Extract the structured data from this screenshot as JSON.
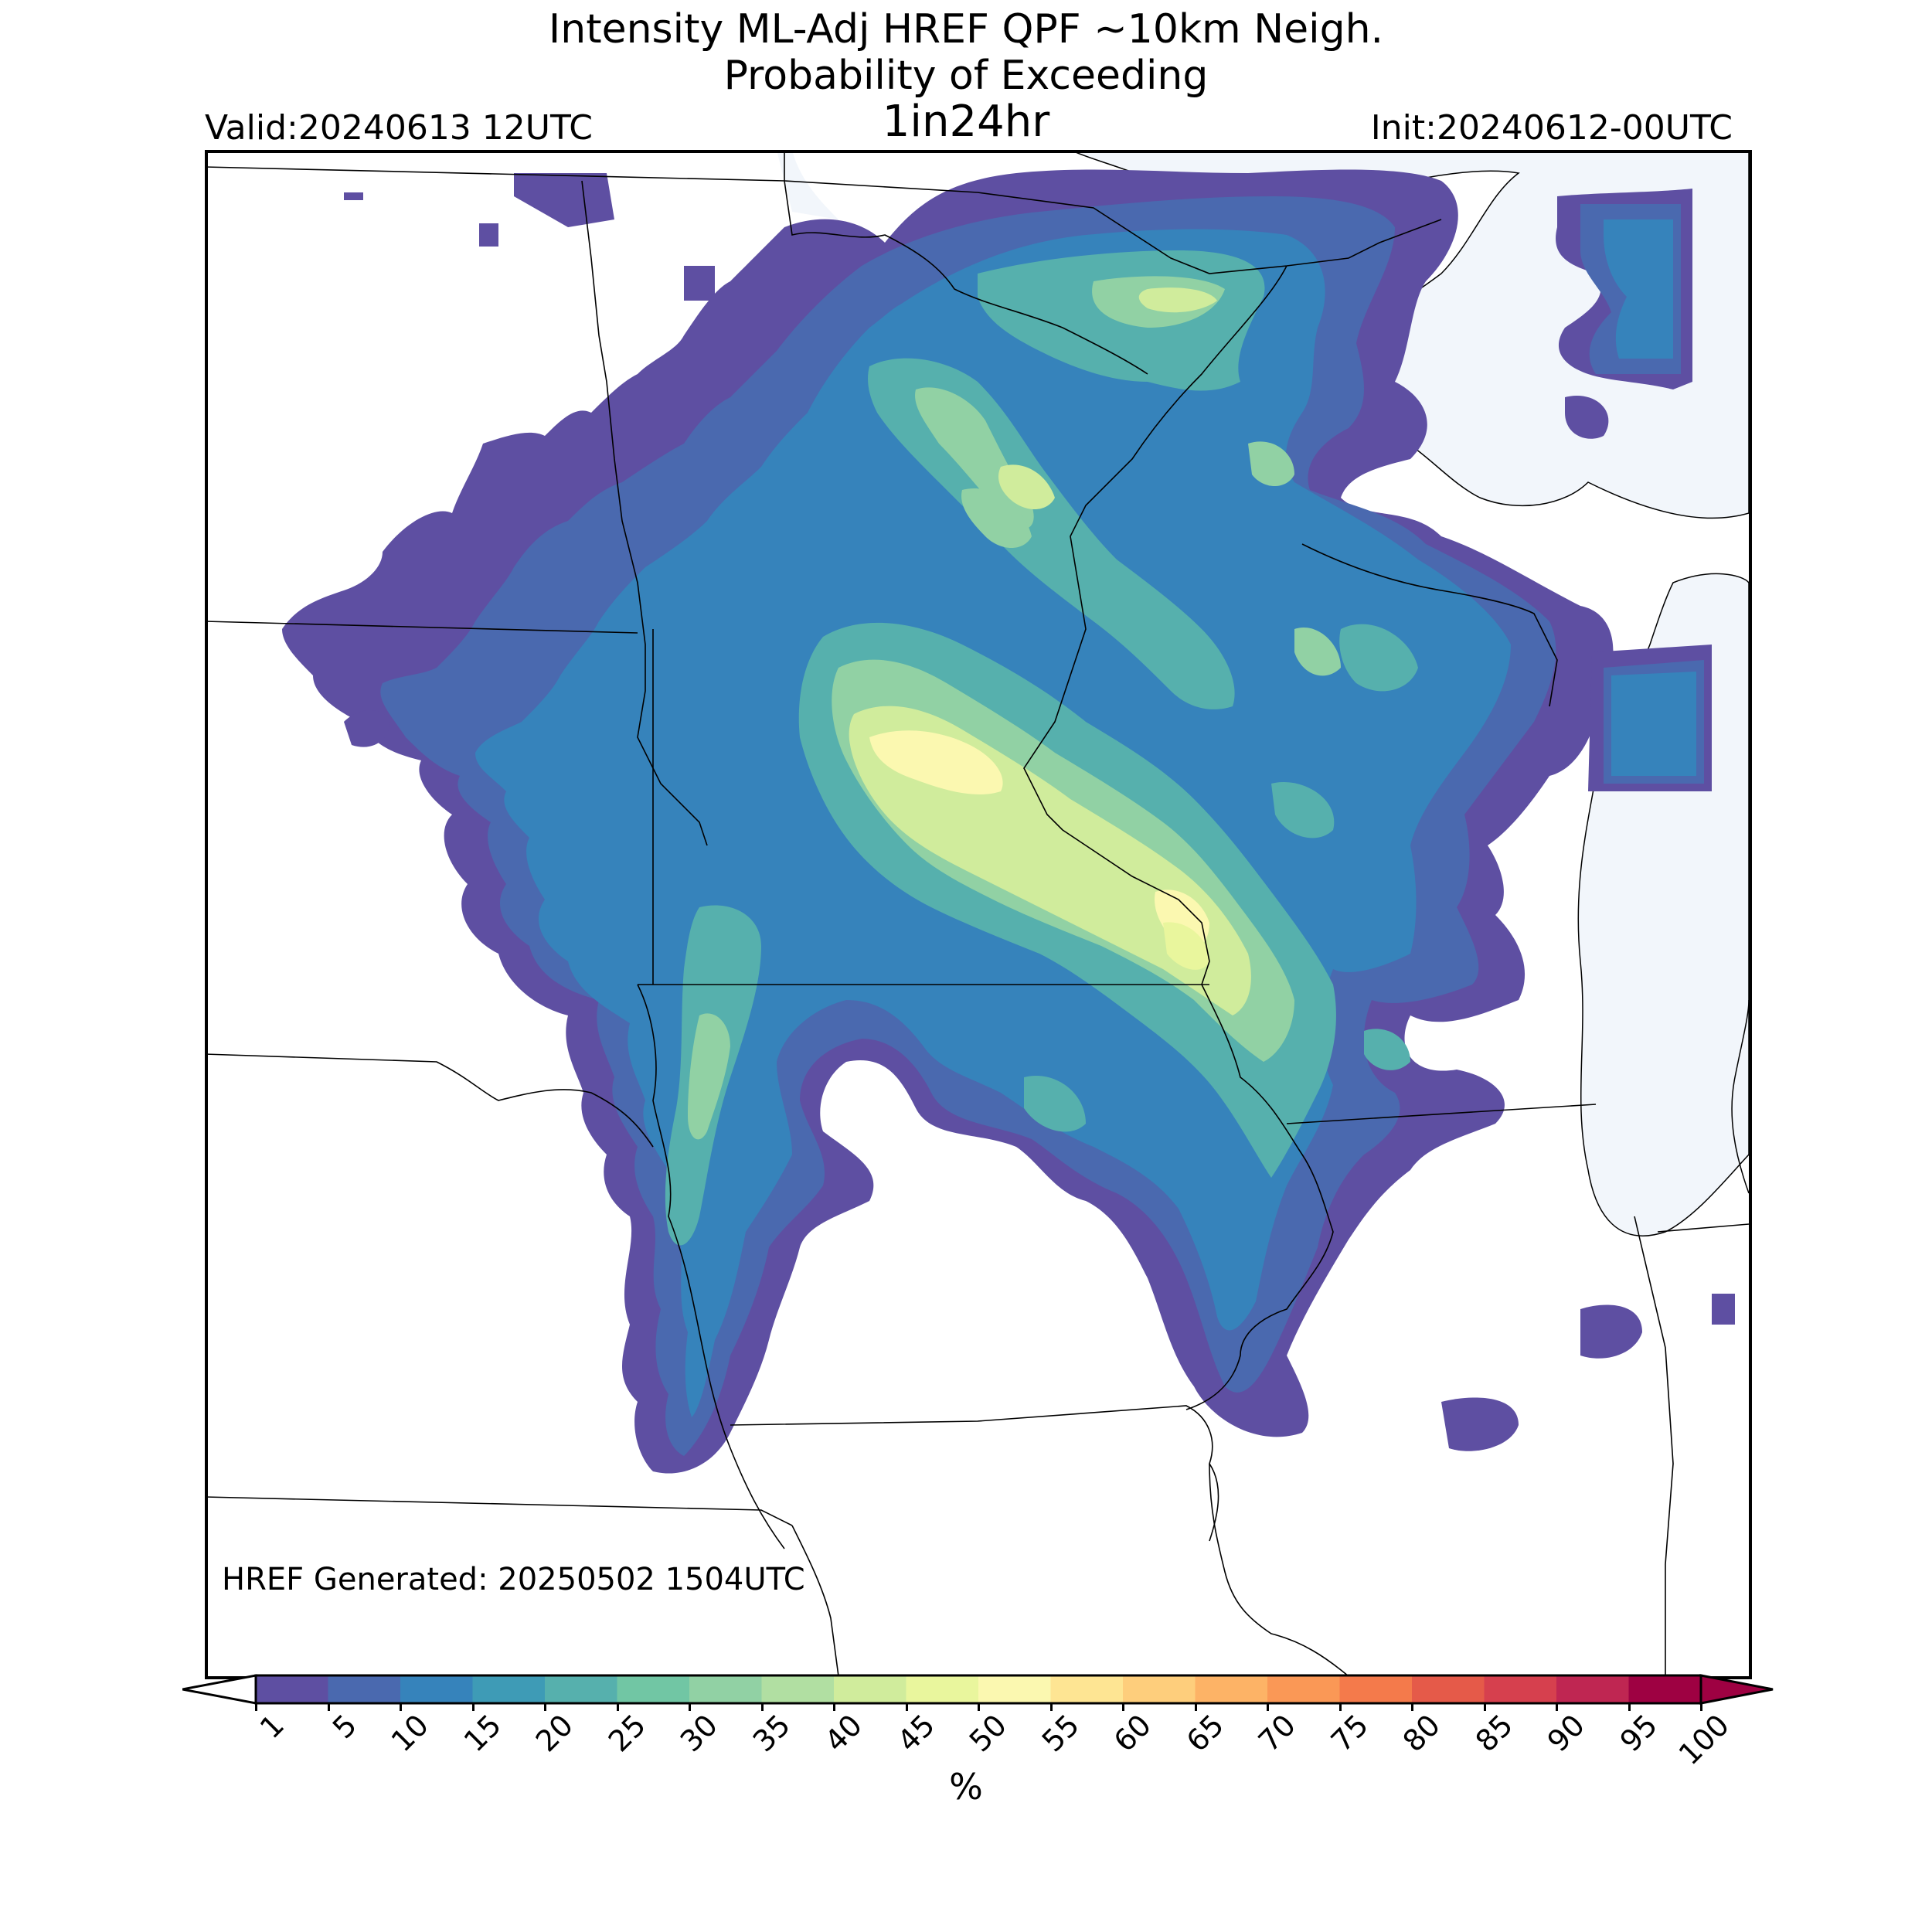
{
  "title": {
    "line1": "Intensity ML-Adj HREF QPF ~10km Neigh.",
    "line2": "Probability of Exceeding",
    "line3": "1in24hr"
  },
  "valid": "Valid:20240613 12UTC",
  "init": "Init:20240612-00UTC",
  "generated": "HREF Generated: 20250502 1504UTC",
  "colorbar": {
    "ticks": [
      "1",
      "5",
      "10",
      "15",
      "20",
      "25",
      "30",
      "35",
      "40",
      "45",
      "50",
      "55",
      "60",
      "65",
      "70",
      "75",
      "80",
      "85",
      "90",
      "95",
      "100"
    ],
    "colors": [
      "#5e4fa2",
      "#4a69af",
      "#3683bb",
      "#3e9bb6",
      "#56b0ad",
      "#71c6a4",
      "#91d1a4",
      "#b1dfa2",
      "#d0ec9c",
      "#e9f69d",
      "#fbf8b0",
      "#fee593",
      "#fece7c",
      "#fdb366",
      "#fa9856",
      "#f47a4b",
      "#e55a49",
      "#d6404e",
      "#bf2652",
      "#9e0142"
    ],
    "extend_low_color": "#ffffff",
    "extend_high_color": "#9e0142",
    "units": "%"
  },
  "map": {
    "lake_color": "#f2f6fb",
    "border_color": "#000000",
    "regions": [
      {
        "name": "nw-blob-1",
        "level": 0
      },
      {
        "name": "main-swath-outer",
        "level": 0
      },
      {
        "name": "main-swath-5",
        "level": 1
      },
      {
        "name": "main-swath-10",
        "level": 2
      },
      {
        "name": "main-swath-20",
        "level": 4
      },
      {
        "name": "main-swath-30",
        "level": 6
      },
      {
        "name": "main-swath-40",
        "level": 8
      },
      {
        "name": "main-swath-50",
        "level": 10
      }
    ]
  }
}
